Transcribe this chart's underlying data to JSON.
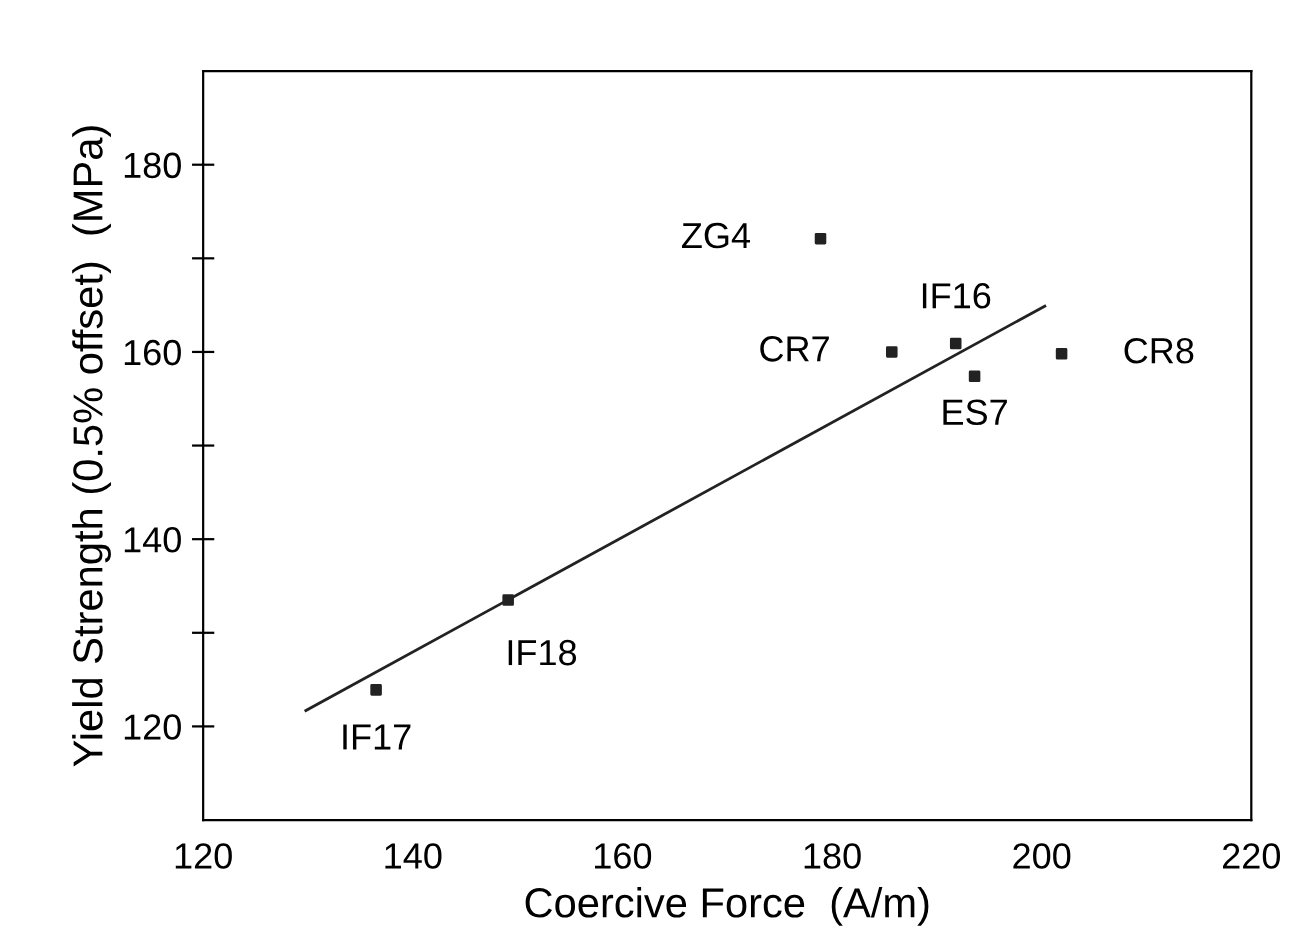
{
  "chart_data": {
    "type": "scatter",
    "xlabel": "Coercive Force  (A/m)",
    "ylabel": "Yield Strength (0.5% offset)  (MPa)",
    "xlim": [
      120,
      220
    ],
    "xticks": [
      120,
      140,
      160,
      180,
      200,
      220
    ],
    "ylim": [
      110,
      190
    ],
    "yticks": [
      {
        "value": 120,
        "label": "120"
      },
      {
        "value": 130,
        "label": null
      },
      {
        "value": 140,
        "label": "140"
      },
      {
        "value": 150,
        "label": null
      },
      {
        "value": 160,
        "label": "160"
      },
      {
        "value": 170,
        "label": null
      },
      {
        "value": 180,
        "label": "180"
      }
    ],
    "grid": false,
    "legend": false,
    "series": [
      {
        "marker": "square",
        "color": "#222222",
        "x": [
          178.9,
          191.8,
          185.7,
          193.6,
          201.9,
          149.1,
          136.5
        ],
        "values": [
          172.1,
          160.9,
          160.0,
          157.4,
          159.8,
          133.5,
          123.9
        ]
      },
      {
        "type": "line",
        "marker": "none",
        "line_style": "solid",
        "color": "#222222",
        "x": [
          129.8,
          200.3
        ],
        "values": [
          121.7,
          164.9
        ]
      }
    ],
    "annotations": [
      {
        "text": "ZG4",
        "x": 178.9,
        "y": 172.1
      },
      {
        "text": "IF16",
        "x": 191.8,
        "y": 160.9
      },
      {
        "text": "CR7",
        "x": 185.7,
        "y": 160.0
      },
      {
        "text": "ES7",
        "x": 193.6,
        "y": 157.4
      },
      {
        "text": "CR8",
        "x": 201.9,
        "y": 159.8
      },
      {
        "text": "IF18",
        "x": 149.1,
        "y": 133.5
      },
      {
        "text": "IF17",
        "x": 136.5,
        "y": 123.9
      }
    ]
  }
}
